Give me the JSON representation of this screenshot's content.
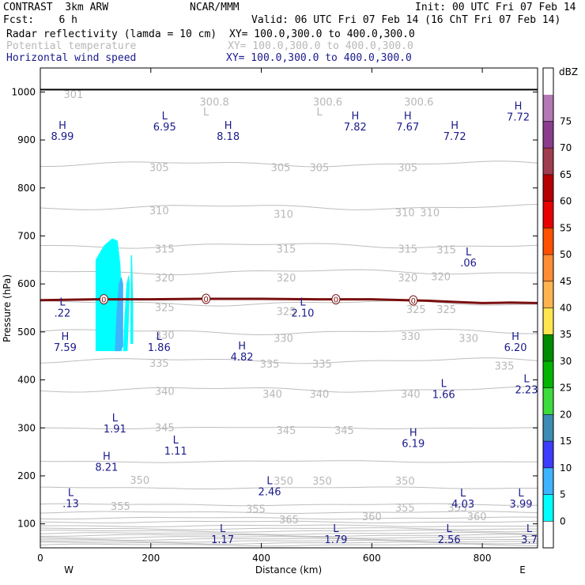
{
  "header": {
    "model": "CONTRAST  3km ARW",
    "center": "NCAR/MMM",
    "init": "Init: 00 UTC Fri 07 Feb 14",
    "fcst": "Fcst:    6 h",
    "valid": "Valid: 06 UTC Fri 07 Feb 14 (16 ChT Fri 07 Feb 14)",
    "field1": "Radar reflectivity (lamda = 10 cm)",
    "xy1": "XY= 100.0,300.0 to 400.0,300.0",
    "field2": "Potential temperature",
    "xy2": "XY= 100.0,300.0 to 400.0,300.0",
    "field3": "Horizontal wind speed",
    "xy3": "XY= 100.0,300.0 to 400.0,300.0"
  },
  "chart_data": {
    "type": "cross-section",
    "xlabel": "Distance (km)",
    "ylabel": "Pressure (hPa)",
    "xlim": [
      0,
      900
    ],
    "ylim": [
      1050,
      50
    ],
    "x_ticks": [
      "0",
      "200",
      "400",
      "600",
      "800"
    ],
    "y_ticks": [
      "100",
      "200",
      "300",
      "400",
      "500",
      "600",
      "700",
      "800",
      "900",
      "1000"
    ],
    "x_end_labels": {
      "left": "W",
      "right": "E"
    },
    "colorbar": {
      "unit": "dBZ",
      "levels": [
        "0",
        "5",
        "10",
        "15",
        "20",
        "25",
        "30",
        "35",
        "40",
        "45",
        "50",
        "55",
        "60",
        "65",
        "70",
        "75"
      ],
      "colors": [
        "#ffffff",
        "#00ffff",
        "#3cb4ff",
        "#3c3cff",
        "#3c8cb4",
        "#3cdc3c",
        "#00b400",
        "#008c00",
        "#ffe650",
        "#ffb450",
        "#ff8c32",
        "#ff5000",
        "#e60000",
        "#b40000",
        "#a03c50",
        "#8c3c8c",
        "#b478b4",
        "#ffffff"
      ]
    },
    "theta_labels": [
      {
        "text": "365",
        "x": 450,
        "p": 108
      },
      {
        "text": "360",
        "x": 600,
        "p": 114
      },
      {
        "text": "360",
        "x": 790,
        "p": 114
      },
      {
        "text": "355",
        "x": 145,
        "p": 136
      },
      {
        "text": "355",
        "x": 390,
        "p": 130
      },
      {
        "text": "355",
        "x": 660,
        "p": 132
      },
      {
        "text": "355",
        "x": 755,
        "p": 132
      },
      {
        "text": "350",
        "x": 180,
        "p": 190
      },
      {
        "text": "350",
        "x": 440,
        "p": 188
      },
      {
        "text": "350",
        "x": 510,
        "p": 188
      },
      {
        "text": "350",
        "x": 660,
        "p": 188
      },
      {
        "text": "345",
        "x": 225,
        "p": 300
      },
      {
        "text": "345",
        "x": 445,
        "p": 294
      },
      {
        "text": "345",
        "x": 550,
        "p": 294
      },
      {
        "text": "340",
        "x": 225,
        "p": 375
      },
      {
        "text": "340",
        "x": 420,
        "p": 370
      },
      {
        "text": "340",
        "x": 505,
        "p": 370
      },
      {
        "text": "340",
        "x": 670,
        "p": 370
      },
      {
        "text": "335",
        "x": 215,
        "p": 434
      },
      {
        "text": "335",
        "x": 415,
        "p": 432
      },
      {
        "text": "335",
        "x": 510,
        "p": 432
      },
      {
        "text": "335",
        "x": 840,
        "p": 428
      },
      {
        "text": "330",
        "x": 225,
        "p": 492
      },
      {
        "text": "330",
        "x": 440,
        "p": 486
      },
      {
        "text": "330",
        "x": 670,
        "p": 490
      },
      {
        "text": "330",
        "x": 775,
        "p": 486
      },
      {
        "text": "325",
        "x": 225,
        "p": 550
      },
      {
        "text": "325",
        "x": 445,
        "p": 542
      },
      {
        "text": "325",
        "x": 680,
        "p": 546
      },
      {
        "text": "325",
        "x": 735,
        "p": 546
      },
      {
        "text": "320",
        "x": 225,
        "p": 612
      },
      {
        "text": "320",
        "x": 445,
        "p": 612
      },
      {
        "text": "320",
        "x": 665,
        "p": 612
      },
      {
        "text": "320",
        "x": 725,
        "p": 614
      },
      {
        "text": "315",
        "x": 225,
        "p": 672
      },
      {
        "text": "315",
        "x": 445,
        "p": 672
      },
      {
        "text": "315",
        "x": 665,
        "p": 672
      },
      {
        "text": "315",
        "x": 735,
        "p": 670
      },
      {
        "text": "310",
        "x": 215,
        "p": 752
      },
      {
        "text": "310",
        "x": 440,
        "p": 744
      },
      {
        "text": "310",
        "x": 660,
        "p": 748
      },
      {
        "text": "310",
        "x": 705,
        "p": 748
      },
      {
        "text": "305",
        "x": 215,
        "p": 842
      },
      {
        "text": "305",
        "x": 435,
        "p": 842
      },
      {
        "text": "305",
        "x": 505,
        "p": 842
      },
      {
        "text": "305",
        "x": 665,
        "p": 842
      },
      {
        "text": "301",
        "x": 60,
        "p": 994
      },
      {
        "text": "L",
        "x": 300,
        "p": 958
      },
      {
        "text": "300.8",
        "x": 315,
        "p": 978
      },
      {
        "text": "L",
        "x": 505,
        "p": 958
      },
      {
        "text": "300.6",
        "x": 520,
        "p": 978
      },
      {
        "text": "300.6",
        "x": 685,
        "p": 978
      }
    ],
    "wind_extrema": [
      {
        "type": "L",
        "value": "1.17",
        "x": 330,
        "p": 80
      },
      {
        "type": "L",
        "value": "1.79",
        "x": 535,
        "p": 80
      },
      {
        "type": "L",
        "value": "2.56",
        "x": 740,
        "p": 80
      },
      {
        "type": "L",
        "value": "3.7",
        "x": 885,
        "p": 80
      },
      {
        "type": "L",
        "value": ".13",
        "x": 55,
        "p": 155
      },
      {
        "type": "L",
        "value": "2.46",
        "x": 415,
        "p": 179
      },
      {
        "type": "L",
        "value": "4.03",
        "x": 765,
        "p": 154
      },
      {
        "type": "L",
        "value": "3.99",
        "x": 870,
        "p": 154
      },
      {
        "type": "H",
        "value": "8.21",
        "x": 120,
        "p": 230
      },
      {
        "type": "L",
        "value": "1.11",
        "x": 245,
        "p": 264
      },
      {
        "type": "L",
        "value": "1.91",
        "x": 135,
        "p": 310
      },
      {
        "type": "H",
        "value": "6.19",
        "x": 675,
        "p": 280
      },
      {
        "type": "L",
        "value": "1.66",
        "x": 730,
        "p": 382
      },
      {
        "type": "L",
        "value": "2.23",
        "x": 880,
        "p": 392
      },
      {
        "type": "H",
        "value": "4.82",
        "x": 365,
        "p": 460
      },
      {
        "type": "H",
        "value": "7.59",
        "x": 45,
        "p": 480
      },
      {
        "type": "L",
        "value": "1.86",
        "x": 215,
        "p": 480
      },
      {
        "type": "H",
        "value": "6.20",
        "x": 860,
        "p": 480
      },
      {
        "type": "L",
        "value": ".22",
        "x": 40,
        "p": 552
      },
      {
        "type": "L",
        "value": "2.10",
        "x": 475,
        "p": 552
      },
      {
        "type": "L",
        "value": ".06",
        "x": 775,
        "p": 656
      },
      {
        "type": "H",
        "value": "8.99",
        "x": 40,
        "p": 920
      },
      {
        "type": "H",
        "value": "8.18",
        "x": 340,
        "p": 920
      },
      {
        "type": "L",
        "value": "6.95",
        "x": 225,
        "p": 940
      },
      {
        "type": "H",
        "value": "7.82",
        "x": 570,
        "p": 940
      },
      {
        "type": "H",
        "value": "7.67",
        "x": 665,
        "p": 940
      },
      {
        "type": "H",
        "value": "7.72",
        "x": 750,
        "p": 920
      },
      {
        "type": "H",
        "value": "7.72",
        "x": 865,
        "p": 960
      }
    ],
    "theta_lines_p": [
      56,
      60,
      64,
      68,
      72,
      76,
      80,
      85,
      90,
      96,
      104,
      112,
      124,
      140,
      175,
      230,
      300,
      380,
      440,
      500,
      560,
      625,
      680,
      760,
      850
    ],
    "zero_line": {
      "label": "0",
      "x": [
        0,
        100,
        200,
        300,
        400,
        500,
        600,
        700,
        760,
        800,
        850,
        900
      ],
      "p": [
        566,
        568,
        568,
        569,
        569,
        568,
        568,
        565,
        562,
        560,
        561,
        560
      ],
      "markers_x": [
        115,
        300,
        535,
        675
      ]
    },
    "reflectivity_cells": [
      {
        "level": 5,
        "x": [
          100,
          105,
          108,
          112,
          118,
          125,
          130,
          135,
          140,
          145,
          148,
          148,
          145,
          140,
          130,
          115,
          100
        ],
        "p": [
          460,
          460,
          460,
          460,
          460,
          460,
          460,
          460,
          460,
          460,
          460,
          560,
          640,
          690,
          695,
          680,
          650
        ]
      },
      {
        "level": 5,
        "x": [
          150,
          158,
          160,
          162,
          160,
          156,
          152
        ],
        "p": [
          460,
          460,
          520,
          600,
          620,
          600,
          520
        ]
      },
      {
        "level": 5,
        "x": [
          163,
          168,
          168,
          166,
          164
        ],
        "p": [
          475,
          475,
          560,
          660,
          660
        ]
      },
      {
        "level": 10,
        "x": [
          135,
          145,
          150,
          150,
          147,
          142,
          138
        ],
        "p": [
          460,
          460,
          470,
          600,
          615,
          600,
          540
        ]
      }
    ]
  }
}
